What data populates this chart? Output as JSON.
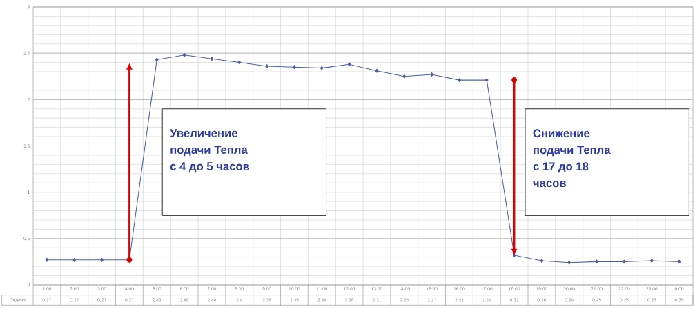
{
  "chart_data": {
    "type": "line",
    "categories": [
      "1:00",
      "2:00",
      "3:00",
      "4:00",
      "5:00",
      "6:00",
      "7:00",
      "8:00",
      "9:00",
      "10:00",
      "11:00",
      "12:00",
      "13:00",
      "14:00",
      "15:00",
      "16:00",
      "17:00",
      "18:00",
      "19:00",
      "20:00",
      "21:00",
      "22:00",
      "23:00",
      "0:00"
    ],
    "series": [
      {
        "name": "Подача",
        "color": "#4f5fa8",
        "values": [
          0.27,
          0.27,
          0.27,
          0.27,
          2.43,
          2.48,
          2.44,
          2.4,
          2.36,
          2.35,
          2.34,
          2.38,
          2.31,
          2.25,
          2.27,
          2.21,
          2.21,
          0.32,
          0.26,
          0.24,
          0.25,
          0.25,
          0.26,
          0.25
        ]
      }
    ],
    "ylim": [
      0,
      3
    ],
    "yticks": [
      0,
      0.5,
      1,
      1.5,
      2,
      2.5,
      3
    ],
    "grid": true,
    "marker": "diamond",
    "line_style": "solid",
    "data_labels": true,
    "annotations": [
      "Увеличение подачи Тепла с 4 до 5 часов",
      "Снижение подачи Тепла с 17 до 18 часов"
    ]
  }
}
